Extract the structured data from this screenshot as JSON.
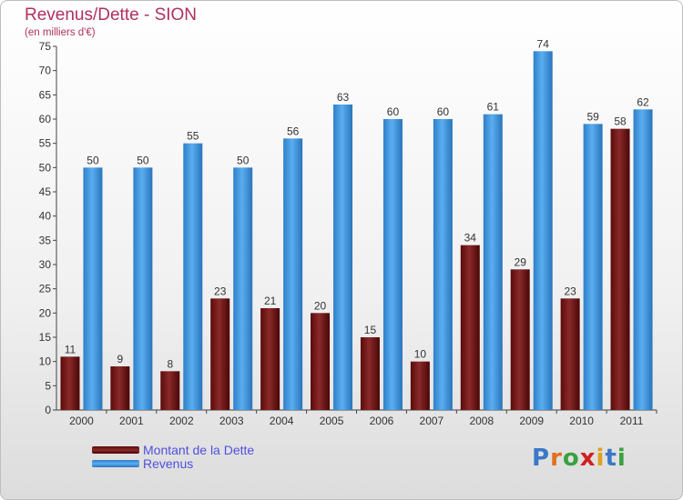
{
  "chart_data": {
    "type": "bar",
    "title": "Revenus/Dette - SION",
    "subtitle": "(en milliers d'€)",
    "categories": [
      "2000",
      "2001",
      "2002",
      "2003",
      "2004",
      "2005",
      "2006",
      "2007",
      "2008",
      "2009",
      "2010",
      "2011"
    ],
    "series": [
      {
        "name": "Montant de la Dette",
        "color": "#7a1a1a",
        "values": [
          11,
          9,
          8,
          23,
          21,
          20,
          15,
          10,
          34,
          29,
          23,
          58
        ]
      },
      {
        "name": "Revenus",
        "color": "#3d94dc",
        "values": [
          50,
          50,
          55,
          50,
          56,
          63,
          60,
          60,
          61,
          74,
          59,
          62
        ]
      }
    ],
    "ylim": [
      0,
      75
    ],
    "yticks": [
      0,
      5,
      10,
      15,
      20,
      25,
      30,
      35,
      40,
      45,
      50,
      55,
      60,
      65,
      70,
      75
    ],
    "grid": false,
    "legend_position": "bottom-left"
  },
  "logo": {
    "letters": [
      "P",
      "r",
      "o",
      "x",
      "i",
      "t",
      "i"
    ],
    "colors": [
      "#3a78c8",
      "#e07020",
      "#3aa040",
      "#d02020",
      "#e0a020",
      "#3a78c8",
      "#3aa040"
    ]
  }
}
